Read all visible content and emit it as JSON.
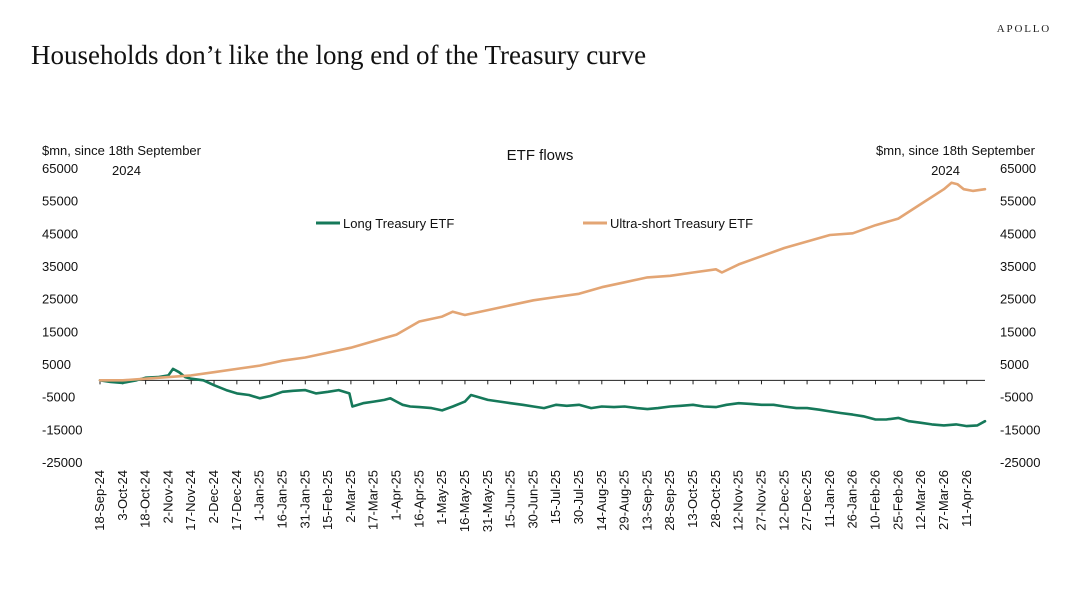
{
  "header": {
    "brand": "APOLLO",
    "title": "Households don’t like the long end of the Treasury curve"
  },
  "colors": {
    "long": "#16795a",
    "ultra": "#e3a574",
    "axis": "#222222"
  },
  "chart_data": {
    "type": "line",
    "title": "ETF flows",
    "y_left_label": [
      "$mn, since 18th September",
      "2024"
    ],
    "y_right_label": [
      "$mn, since 18th September",
      "2024"
    ],
    "ylim": [
      -25000,
      65000
    ],
    "y_ticks": [
      65000,
      55000,
      45000,
      35000,
      25000,
      15000,
      5000,
      -5000,
      -15000,
      -25000
    ],
    "x_tick_labels": [
      "18-Sep-24",
      "3-Oct-24",
      "18-Oct-24",
      "2-Nov-24",
      "17-Nov-24",
      "2-Dec-24",
      "17-Dec-24",
      "1-Jan-25",
      "16-Jan-25",
      "31-Jan-25",
      "15-Feb-25",
      "2-Mar-25",
      "17-Mar-25",
      "1-Apr-25",
      "16-Apr-25",
      "1-May-25",
      "16-May-25",
      "31-May-25",
      "15-Jun-25",
      "30-Jun-25",
      "15-Jul-25",
      "30-Jul-25",
      "14-Aug-25",
      "29-Aug-25",
      "13-Sep-25",
      "28-Sep-25",
      "13-Oct-25",
      "28-Oct-25",
      "12-Nov-25",
      "27-Nov-25",
      "12-Dec-25",
      "27-Dec-25",
      "11-Jan-26",
      "26-Jan-26",
      "10-Feb-26",
      "25-Feb-26",
      "12-Mar-26",
      "27-Mar-26",
      "11-Apr-26"
    ],
    "x_start": "2024-09-18",
    "x_end": "2026-04-23",
    "legend_position": "top-center",
    "grid": false,
    "series": [
      {
        "name": "Long Treasury ETF",
        "axis": "left",
        "color": "#16795a",
        "points": [
          [
            "2024-09-18",
            0
          ],
          [
            "2024-09-25",
            -500
          ],
          [
            "2024-10-03",
            -800
          ],
          [
            "2024-10-12",
            0
          ],
          [
            "2024-10-18",
            800
          ],
          [
            "2024-10-26",
            1000
          ],
          [
            "2024-11-02",
            1500
          ],
          [
            "2024-11-05",
            3500
          ],
          [
            "2024-11-09",
            2500
          ],
          [
            "2024-11-13",
            1000
          ],
          [
            "2024-11-17",
            500
          ],
          [
            "2024-11-25",
            0
          ],
          [
            "2024-12-02",
            -1500
          ],
          [
            "2024-12-10",
            -3000
          ],
          [
            "2024-12-17",
            -4000
          ],
          [
            "2024-12-25",
            -4500
          ],
          [
            "2025-01-01",
            -5500
          ],
          [
            "2025-01-08",
            -4800
          ],
          [
            "2025-01-16",
            -3500
          ],
          [
            "2025-01-23",
            -3200
          ],
          [
            "2025-01-31",
            -3000
          ],
          [
            "2025-02-07",
            -4000
          ],
          [
            "2025-02-15",
            -3500
          ],
          [
            "2025-02-22",
            -3000
          ],
          [
            "2025-03-01",
            -4000
          ],
          [
            "2025-03-03",
            -8000
          ],
          [
            "2025-03-10",
            -7000
          ],
          [
            "2025-03-17",
            -6500
          ],
          [
            "2025-03-24",
            -6000
          ],
          [
            "2025-03-28",
            -5500
          ],
          [
            "2025-04-01",
            -6500
          ],
          [
            "2025-04-05",
            -7500
          ],
          [
            "2025-04-10",
            -8000
          ],
          [
            "2025-04-16",
            -8200
          ],
          [
            "2025-04-24",
            -8500
          ],
          [
            "2025-05-01",
            -9200
          ],
          [
            "2025-05-08",
            -8000
          ],
          [
            "2025-05-16",
            -6500
          ],
          [
            "2025-05-20",
            -4500
          ],
          [
            "2025-05-24",
            -5000
          ],
          [
            "2025-05-31",
            -6000
          ],
          [
            "2025-06-08",
            -6500
          ],
          [
            "2025-06-15",
            -7000
          ],
          [
            "2025-06-23",
            -7500
          ],
          [
            "2025-06-30",
            -8000
          ],
          [
            "2025-07-07",
            -8500
          ],
          [
            "2025-07-15",
            -7500
          ],
          [
            "2025-07-22",
            -7800
          ],
          [
            "2025-07-30",
            -7500
          ],
          [
            "2025-08-07",
            -8500
          ],
          [
            "2025-08-14",
            -8000
          ],
          [
            "2025-08-22",
            -8200
          ],
          [
            "2025-08-29",
            -8000
          ],
          [
            "2025-09-06",
            -8500
          ],
          [
            "2025-09-13",
            -8800
          ],
          [
            "2025-09-20",
            -8500
          ],
          [
            "2025-09-28",
            -8000
          ],
          [
            "2025-10-05",
            -7800
          ],
          [
            "2025-10-13",
            -7500
          ],
          [
            "2025-10-20",
            -8000
          ],
          [
            "2025-10-28",
            -8200
          ],
          [
            "2025-11-04",
            -7500
          ],
          [
            "2025-11-12",
            -7000
          ],
          [
            "2025-11-20",
            -7200
          ],
          [
            "2025-11-27",
            -7500
          ],
          [
            "2025-12-05",
            -7500
          ],
          [
            "2025-12-12",
            -8000
          ],
          [
            "2025-12-20",
            -8500
          ],
          [
            "2025-12-27",
            -8500
          ],
          [
            "2026-01-04",
            -9000
          ],
          [
            "2026-01-11",
            -9500
          ],
          [
            "2026-01-18",
            -10000
          ],
          [
            "2026-01-26",
            -10500
          ],
          [
            "2026-02-02",
            -11000
          ],
          [
            "2026-02-10",
            -12000
          ],
          [
            "2026-02-17",
            -12000
          ],
          [
            "2026-02-25",
            -11500
          ],
          [
            "2026-03-04",
            -12500
          ],
          [
            "2026-03-12",
            -13000
          ],
          [
            "2026-03-19",
            -13500
          ],
          [
            "2026-03-27",
            -13800
          ],
          [
            "2026-04-04",
            -13500
          ],
          [
            "2026-04-11",
            -14000
          ],
          [
            "2026-04-18",
            -13800
          ],
          [
            "2026-04-23",
            -12500
          ]
        ]
      },
      {
        "name": "Ultra-short Treasury ETF",
        "axis": "right",
        "color": "#e3a574",
        "points": [
          [
            "2024-09-18",
            0
          ],
          [
            "2024-10-03",
            0
          ],
          [
            "2024-10-18",
            500
          ],
          [
            "2024-11-02",
            1000
          ],
          [
            "2024-11-17",
            1500
          ],
          [
            "2024-12-02",
            2500
          ],
          [
            "2024-12-17",
            3500
          ],
          [
            "2025-01-01",
            4500
          ],
          [
            "2025-01-16",
            6000
          ],
          [
            "2025-01-31",
            7000
          ],
          [
            "2025-02-15",
            8500
          ],
          [
            "2025-03-02",
            10000
          ],
          [
            "2025-03-17",
            12000
          ],
          [
            "2025-04-01",
            14000
          ],
          [
            "2025-04-16",
            18000
          ],
          [
            "2025-05-01",
            19500
          ],
          [
            "2025-05-08",
            21000
          ],
          [
            "2025-05-16",
            20000
          ],
          [
            "2025-05-31",
            21500
          ],
          [
            "2025-06-15",
            23000
          ],
          [
            "2025-06-30",
            24500
          ],
          [
            "2025-07-15",
            25500
          ],
          [
            "2025-07-30",
            26500
          ],
          [
            "2025-08-14",
            28500
          ],
          [
            "2025-08-29",
            30000
          ],
          [
            "2025-09-13",
            31500
          ],
          [
            "2025-09-28",
            32000
          ],
          [
            "2025-10-13",
            33000
          ],
          [
            "2025-10-28",
            34000
          ],
          [
            "2025-11-01",
            33000
          ],
          [
            "2025-11-12",
            35500
          ],
          [
            "2025-11-27",
            38000
          ],
          [
            "2025-12-12",
            40500
          ],
          [
            "2025-12-27",
            42500
          ],
          [
            "2026-01-11",
            44500
          ],
          [
            "2026-01-26",
            45000
          ],
          [
            "2026-02-10",
            47500
          ],
          [
            "2026-02-25",
            49500
          ],
          [
            "2026-03-12",
            54000
          ],
          [
            "2026-03-27",
            58500
          ],
          [
            "2026-04-01",
            60500
          ],
          [
            "2026-04-05",
            60000
          ],
          [
            "2026-04-09",
            58500
          ],
          [
            "2026-04-15",
            58000
          ],
          [
            "2026-04-23",
            58500
          ]
        ]
      }
    ]
  }
}
